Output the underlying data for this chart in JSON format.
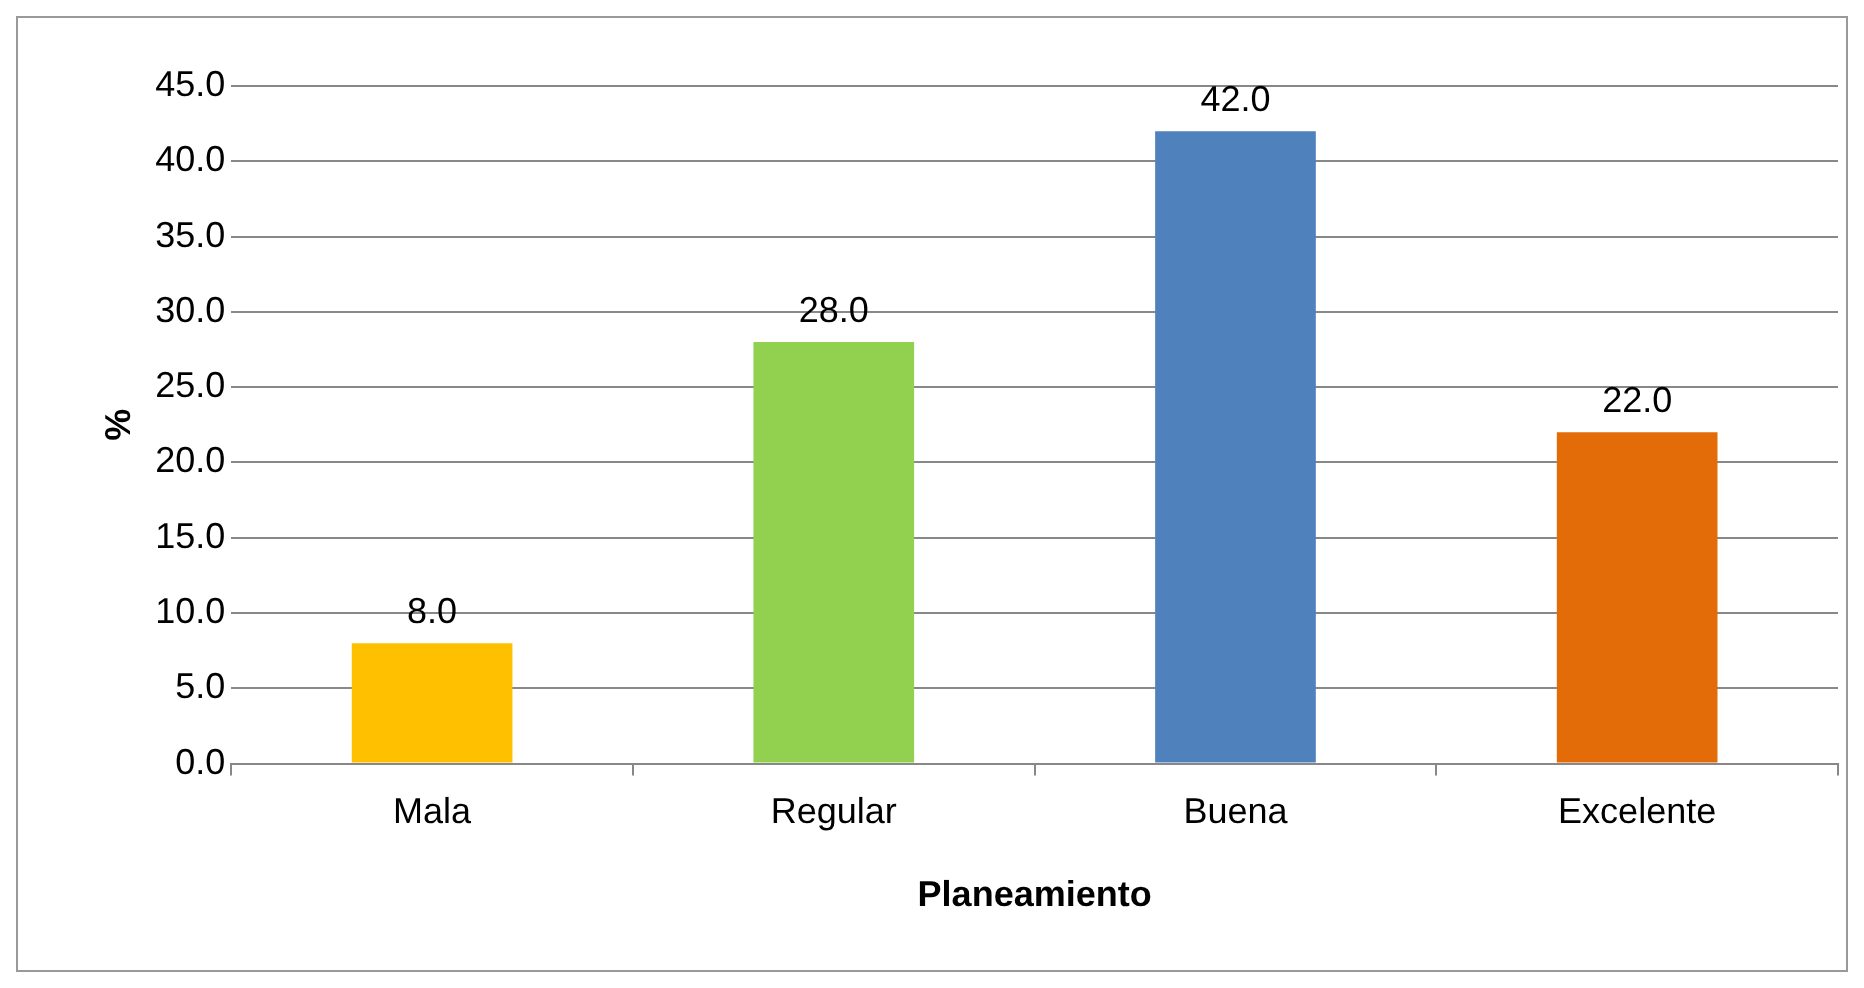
{
  "chart_data": {
    "type": "bar",
    "xlabel": "Planeamiento",
    "ylabel": "%",
    "categories": [
      "Mala",
      "Regular",
      "Buena",
      "Excelente"
    ],
    "values": [
      8,
      28,
      42,
      22
    ],
    "colors": [
      "#ffc000",
      "#92d050",
      "#4f81bd",
      "#e36c09"
    ],
    "value_labels": [
      "8.0",
      "28.0",
      "42.0",
      "22.0"
    ],
    "ylim": [
      0,
      45
    ],
    "yticks": [
      {
        "value": 0,
        "label": "0.0"
      },
      {
        "value": 5,
        "label": "5.0"
      },
      {
        "value": 10,
        "label": "10.0"
      },
      {
        "value": 15,
        "label": "15.0"
      },
      {
        "value": 20,
        "label": "20.0"
      },
      {
        "value": 25,
        "label": "25.0"
      },
      {
        "value": 30,
        "label": "30.0"
      },
      {
        "value": 35,
        "label": "35.0"
      },
      {
        "value": 40,
        "label": "40.0"
      },
      {
        "value": 45,
        "label": "45.0"
      }
    ],
    "grid": "y"
  }
}
